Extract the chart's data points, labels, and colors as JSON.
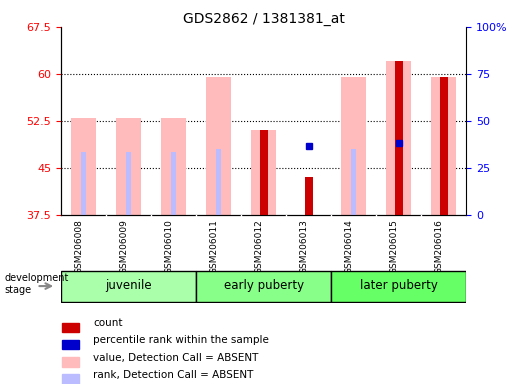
{
  "title": "GDS2862 / 1381381_at",
  "samples": [
    "GSM206008",
    "GSM206009",
    "GSM206010",
    "GSM206011",
    "GSM206012",
    "GSM206013",
    "GSM206014",
    "GSM206015",
    "GSM206016"
  ],
  "groups": [
    {
      "name": "juvenile",
      "color": "#99ee99",
      "start": 0,
      "end": 3
    },
    {
      "name": "early puberty",
      "color": "#88ee88",
      "start": 3,
      "end": 6
    },
    {
      "name": "later puberty",
      "color": "#66dd66",
      "start": 6,
      "end": 9
    }
  ],
  "ylim_left": [
    37.5,
    67.5
  ],
  "ylim_right": [
    0,
    100
  ],
  "yticks_left": [
    37.5,
    45.0,
    52.5,
    60.0,
    67.5
  ],
  "ytick_labels_left": [
    "37.5",
    "45",
    "52.5",
    "60",
    "67.5"
  ],
  "yticks_right": [
    0,
    25,
    50,
    75,
    100
  ],
  "ytick_labels_right": [
    "0",
    "25",
    "50",
    "75",
    "100%"
  ],
  "bar_bottom": 37.5,
  "pink_bar_top": [
    53.0,
    53.0,
    53.0,
    59.5,
    51.0,
    37.5,
    59.5,
    62.0,
    59.5
  ],
  "light_blue_bar_top": [
    47.5,
    47.5,
    47.5,
    48.0,
    48.0,
    37.5,
    48.0,
    48.5,
    47.5
  ],
  "red_bar_top": [
    37.5,
    37.5,
    37.5,
    37.5,
    51.0,
    43.5,
    37.5,
    62.0,
    59.5
  ],
  "blue_dot_y": [
    null,
    null,
    null,
    null,
    null,
    48.5,
    null,
    49.0,
    null
  ],
  "pink_bar_color": "#ffbbbb",
  "light_blue_bar_color": "#bbbbff",
  "red_bar_color": "#cc0000",
  "blue_dot_color": "#0000cc",
  "plot_facecolor": "#ffffff",
  "fig_facecolor": "#ffffff",
  "xtick_area_color": "#cccccc",
  "group_colors": [
    "#aaffaa",
    "#88ff88",
    "#66ff66"
  ],
  "development_stage_label": "development stage",
  "legend_items": [
    {
      "color": "#cc0000",
      "label": "count"
    },
    {
      "color": "#0000cc",
      "label": "percentile rank within the sample"
    },
    {
      "color": "#ffbbbb",
      "label": "value, Detection Call = ABSENT"
    },
    {
      "color": "#bbbbff",
      "label": "rank, Detection Call = ABSENT"
    }
  ]
}
